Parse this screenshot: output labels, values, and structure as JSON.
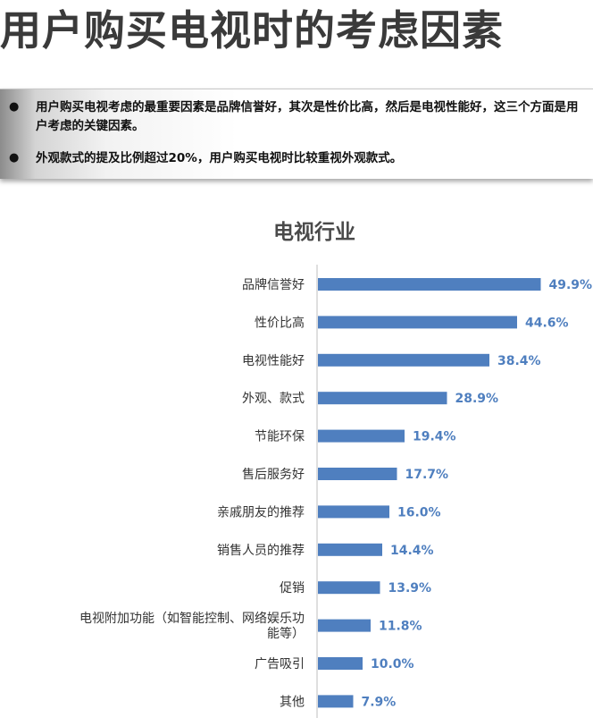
{
  "title": "用户购买电视时的考虑因素",
  "summary": {
    "bullet_symbol": "●",
    "points": [
      "用户购买电视考虑的最重要因素是品牌信誉好，其次是性价比高，然后是电视性能好，这三个方面是用户考虑的关键因素。",
      "外观款式的提及比例超过20%，用户购买电视时比较重视外观款式。"
    ]
  },
  "chart_data": {
    "type": "bar",
    "orientation": "horizontal",
    "title": "电视行业",
    "categories": [
      "品牌信誉好",
      "性价比高",
      "电视性能好",
      "外观、款式",
      "节能环保",
      "售后服务好",
      "亲戚朋友的推荐",
      "销售人员的推荐",
      "促销",
      "电视附加功能（如智能控制、网络娱乐功能等）",
      "广告吸引",
      "其他"
    ],
    "category_lines": [
      [
        "品牌信誉好"
      ],
      [
        "性价比高"
      ],
      [
        "电视性能好"
      ],
      [
        "外观、款式"
      ],
      [
        "节能环保"
      ],
      [
        "售后服务好"
      ],
      [
        "亲戚朋友的推荐"
      ],
      [
        "销售人员的推荐"
      ],
      [
        "促销"
      ],
      [
        "电视附加功能（如智能控制、网络娱乐功",
        "能等）"
      ],
      [
        "广告吸引"
      ],
      [
        "其他"
      ]
    ],
    "values": [
      49.9,
      44.6,
      38.4,
      28.9,
      19.4,
      17.7,
      16.0,
      14.4,
      13.9,
      11.8,
      10.0,
      7.9
    ],
    "value_labels": [
      "49.9%",
      "44.6%",
      "38.4%",
      "28.9%",
      "19.4%",
      "17.7%",
      "16.0%",
      "14.4%",
      "13.9%",
      "11.8%",
      "10.0%",
      "7.9%"
    ],
    "bar_color": "#4f7fbf",
    "value_label_color": "#4f7fbf",
    "grid": false
  }
}
